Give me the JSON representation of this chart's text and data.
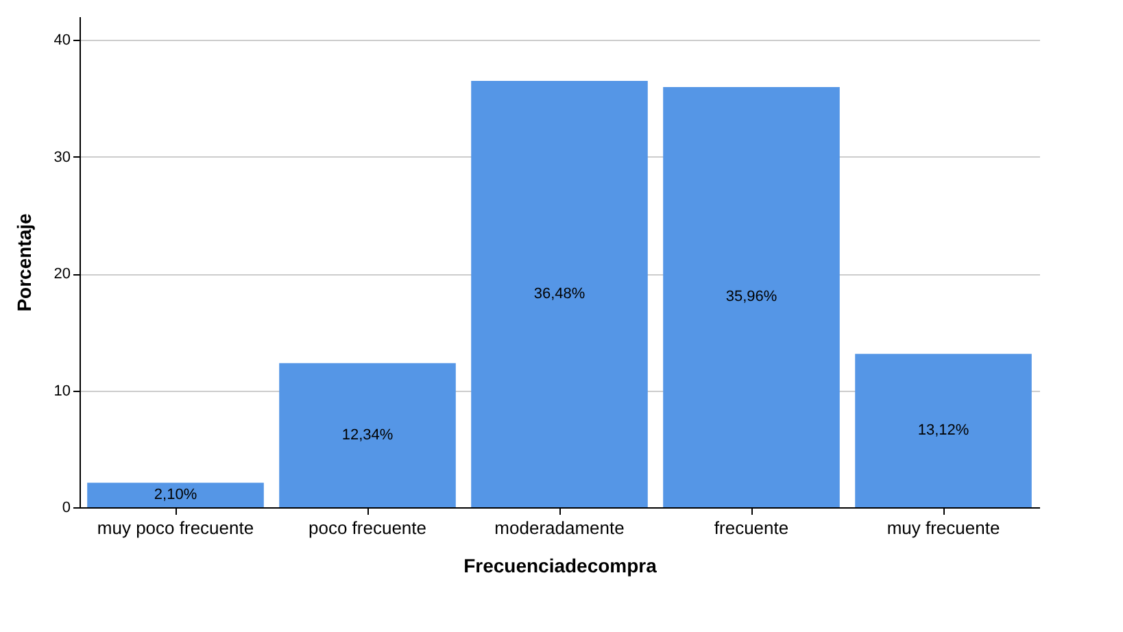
{
  "chart_data": {
    "type": "bar",
    "xlabel": "Frecuenciadecompra",
    "ylabel": "Porcentaje",
    "categories": [
      "muy poco frecuente",
      "poco frecuente",
      "moderadamente",
      "frecuente",
      "muy frecuente"
    ],
    "values": [
      2.1,
      12.34,
      36.48,
      35.96,
      13.12
    ],
    "value_labels": [
      "2,10%",
      "12,34%",
      "36,48%",
      "35,96%",
      "13,12%"
    ],
    "color": "#5596e6",
    "ylim": [
      0,
      42
    ],
    "yticks": [
      0,
      10,
      20,
      30,
      40
    ],
    "grid": "y"
  }
}
